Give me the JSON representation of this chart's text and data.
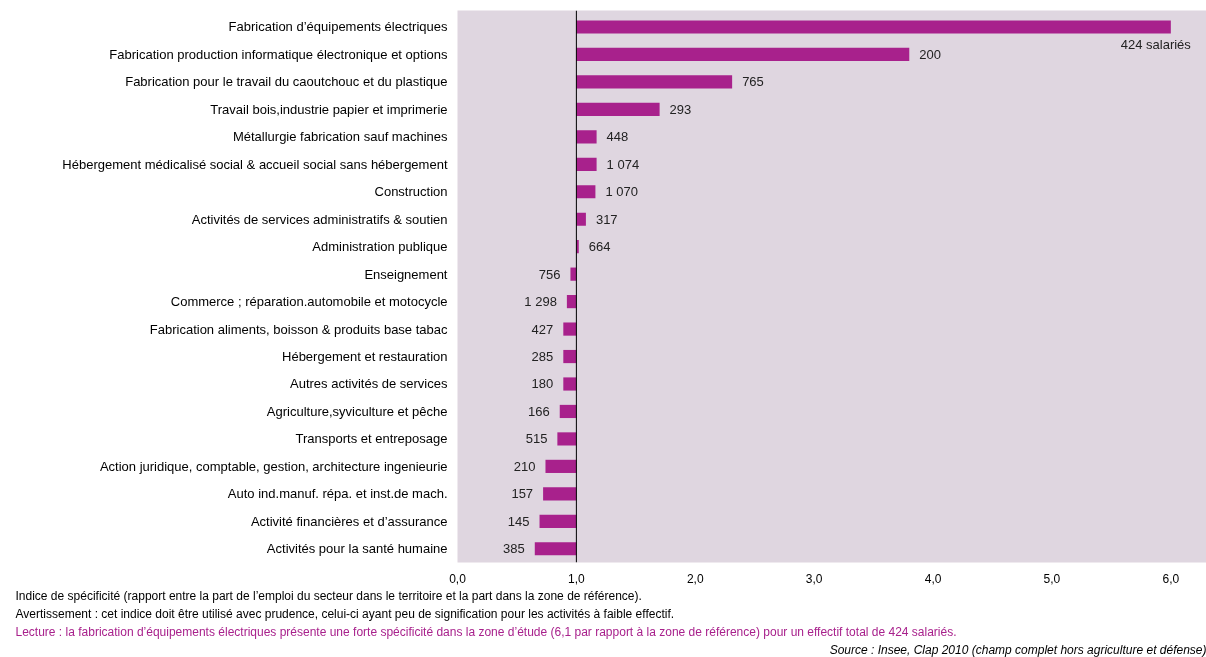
{
  "chart_data": {
    "type": "bar",
    "orientation": "horizontal",
    "categories": [
      "Fabrication d’équipements électriques",
      "Fabrication production informatique électronique et options",
      "Fabrication pour le travail du caoutchouc et du plastique",
      "Travail bois,industrie papier et imprimerie",
      "Métallurgie fabrication sauf machines",
      "Hébergement médicalisé social & accueil social sans hébergement",
      "Construction",
      "Activités de services administratifs & soutien",
      "Administration publique",
      "Enseignement",
      "Commerce ; réparation.automobile et motocycle",
      "Fabrication aliments, boisson & produits base tabac",
      "Hébergement et restauration",
      "Autres activités de services",
      "Agriculture,syviculture et pêche",
      "Transports et entreposage",
      "Action juridique, comptable, gestion, architecture ingenieurie",
      "Auto ind.manuf. répa. et inst.de mach.",
      "Activité financières et d’assurance",
      "Activités pour la santé humaine"
    ],
    "base": [
      1,
      1,
      1,
      1,
      1,
      1,
      1,
      1,
      1,
      1,
      1,
      1,
      1,
      1,
      1,
      1,
      1,
      1,
      1,
      1
    ],
    "values": [
      5.0,
      2.8,
      1.31,
      0.7,
      0.17,
      0.17,
      0.16,
      0.08,
      0.02,
      -0.05,
      -0.08,
      -0.11,
      -0.11,
      -0.11,
      -0.14,
      -0.16,
      -0.26,
      -0.28,
      -0.31,
      -0.35
    ],
    "color": "#a8218c",
    "xlim": [
      0,
      6.3
    ],
    "xticks": [
      {
        "value": 0,
        "label": "0,0"
      },
      {
        "value": 1,
        "label": "1,0"
      },
      {
        "value": 2,
        "label": "2,0"
      },
      {
        "value": 3,
        "label": "3,0"
      },
      {
        "value": 4,
        "label": "4,0"
      },
      {
        "value": 5,
        "label": "5,0"
      },
      {
        "value": 6,
        "label": "6,0"
      }
    ],
    "ref_lines": [
      {
        "axis": "x",
        "value": 1,
        "color": "#000000"
      }
    ],
    "annotations": [
      {
        "text": "424 salariés",
        "x": 6.0,
        "y": "Fabrication d’équipements électriques"
      },
      {
        "text": "200",
        "x": 3.8,
        "y": "Fabrication production informatique électronique et options"
      },
      {
        "text": "765",
        "x": 2.31,
        "y": "Fabrication pour le travail du caoutchouc et du plastique"
      },
      {
        "text": "293",
        "x": 1.7,
        "y": "Travail bois,industrie papier et imprimerie"
      },
      {
        "text": "448",
        "x": 1.17,
        "y": "Métallurgie fabrication sauf machines"
      },
      {
        "text": "1 074",
        "x": 1.17,
        "y": "Hébergement médicalisé social & accueil social sans hébergement"
      },
      {
        "text": "1 070",
        "x": 1.16,
        "y": "Construction"
      },
      {
        "text": "317",
        "x": 1.08,
        "y": "Activités de services administratifs & soutien"
      },
      {
        "text": "664",
        "x": 1.02,
        "y": "Administration publique"
      },
      {
        "text": "756",
        "x": 0.95,
        "y": "Enseignement"
      },
      {
        "text": "1 298",
        "x": 0.92,
        "y": "Commerce ; réparation.automobile et motocycle"
      },
      {
        "text": "427",
        "x": 0.89,
        "y": "Fabrication aliments, boisson & produits base tabac"
      },
      {
        "text": "285",
        "x": 0.89,
        "y": "Hébergement et restauration"
      },
      {
        "text": "180",
        "x": 0.89,
        "y": "Autres activités de services"
      },
      {
        "text": "166",
        "x": 0.86,
        "y": "Agriculture,syviculture et pêche"
      },
      {
        "text": "515",
        "x": 0.84,
        "y": "Transports et entreposage"
      },
      {
        "text": "210",
        "x": 0.74,
        "y": "Action juridique, comptable, gestion, architecture ingenieurie"
      },
      {
        "text": "157",
        "x": 0.72,
        "y": "Auto ind.manuf. répa. et inst.de mach."
      },
      {
        "text": "145",
        "x": 0.69,
        "y": "Activité financières et d’assurance"
      },
      {
        "text": "385",
        "x": 0.65,
        "y": "Activités pour la santé humaine"
      },
      "Indice de spécificité (rapport entre la part de l’emploi du secteur dans le territoire et la part dans la zone de référence).",
      "Avertissement : cet indice doit être utilisé avec prudence, celui-ci ayant peu de signification pour les activités à faible effectif.",
      "Lecture : la fabrication d’équipements électriques présente une forte spécificité dans la zone d’étude (6,1 par rapport à la zone de référence) pour un effectif total de 424 salariés.",
      "Source : Insee, Clap 2010 (champ complet hors agriculture et défense)"
    ]
  }
}
